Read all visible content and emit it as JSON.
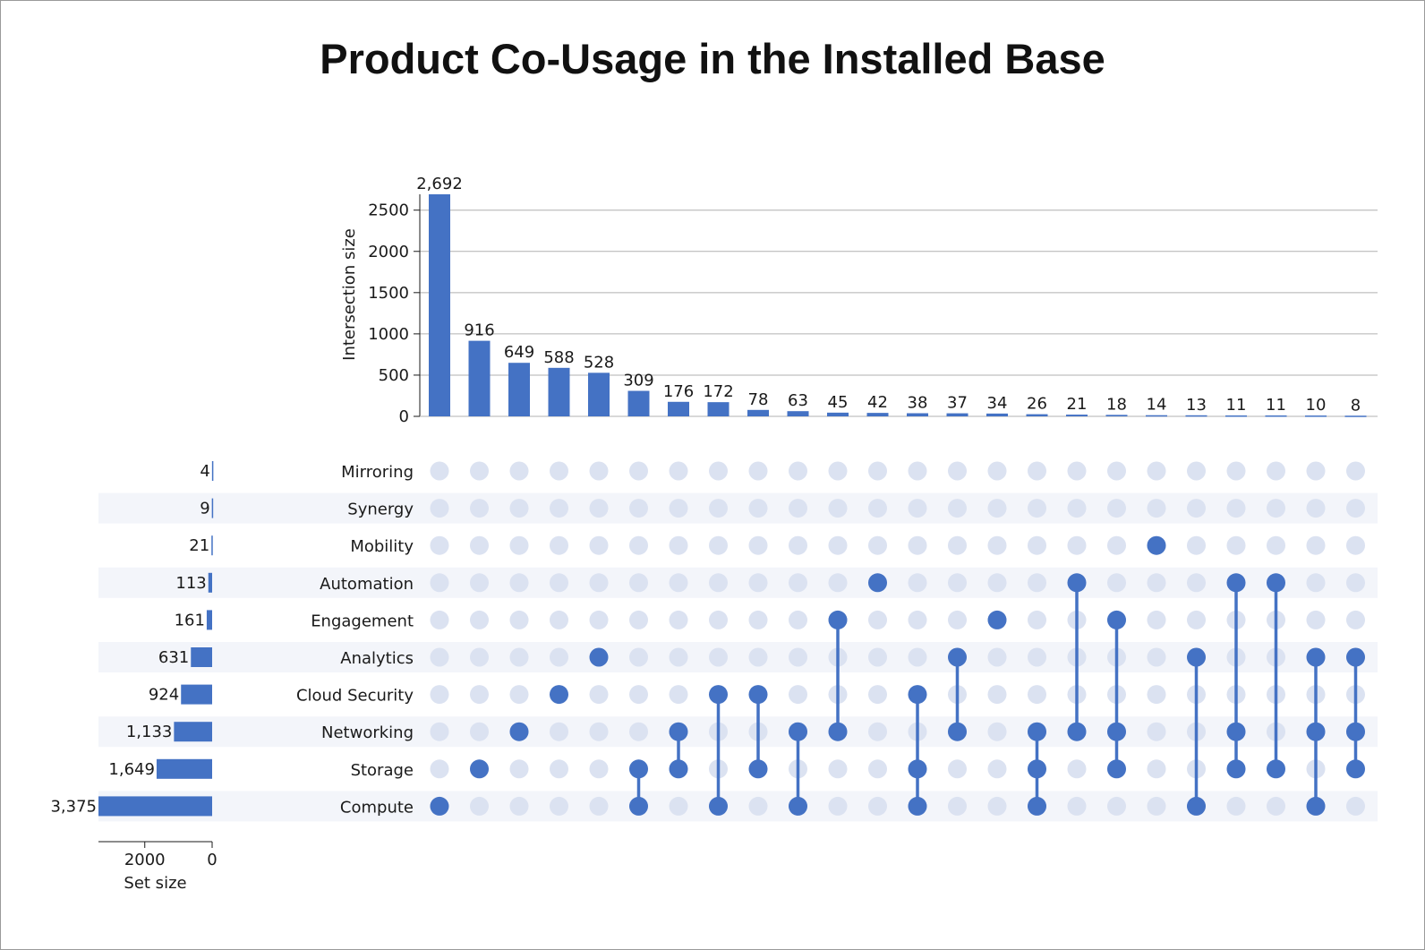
{
  "title": "Product Co-Usage in the Installed Base",
  "colors": {
    "bar": "#4472c4",
    "dot_on": "#4472c4",
    "dot_off": "#dbe2f1",
    "row_shade": "#f3f5fa",
    "grid": "#b0b0b0"
  },
  "chart_data": {
    "type": "upset",
    "title": "Product Co-Usage in the Installed Base",
    "ylabel": "Intersection size",
    "xlabel_sets": "Set size",
    "intersection_ylim": [
      0,
      2692
    ],
    "intersection_yticks": [
      0,
      500,
      1000,
      1500,
      2000,
      2500
    ],
    "set_size_xticks": [
      2000,
      0
    ],
    "sets": [
      {
        "name": "Mirroring",
        "size": 4,
        "label": "4"
      },
      {
        "name": "Synergy",
        "size": 9,
        "label": "9"
      },
      {
        "name": "Mobility",
        "size": 21,
        "label": "21"
      },
      {
        "name": "Automation",
        "size": 113,
        "label": "113"
      },
      {
        "name": "Engagement",
        "size": 161,
        "label": "161"
      },
      {
        "name": "Analytics",
        "size": 631,
        "label": "631"
      },
      {
        "name": "Cloud Security",
        "size": 924,
        "label": "924"
      },
      {
        "name": "Networking",
        "size": 1133,
        "label": "1,133"
      },
      {
        "name": "Storage",
        "size": 1649,
        "label": "1,649"
      },
      {
        "name": "Compute",
        "size": 3375,
        "label": "3,375"
      }
    ],
    "intersections": [
      {
        "value": 2692,
        "label": "2,692",
        "members": [
          "Compute"
        ]
      },
      {
        "value": 916,
        "label": "916",
        "members": [
          "Storage"
        ]
      },
      {
        "value": 649,
        "label": "649",
        "members": [
          "Networking"
        ]
      },
      {
        "value": 588,
        "label": "588",
        "members": [
          "Cloud Security"
        ]
      },
      {
        "value": 528,
        "label": "528",
        "members": [
          "Analytics"
        ]
      },
      {
        "value": 309,
        "label": "309",
        "members": [
          "Storage",
          "Compute"
        ]
      },
      {
        "value": 176,
        "label": "176",
        "members": [
          "Networking",
          "Storage"
        ]
      },
      {
        "value": 172,
        "label": "172",
        "members": [
          "Cloud Security",
          "Compute"
        ]
      },
      {
        "value": 78,
        "label": "78",
        "members": [
          "Cloud Security",
          "Storage"
        ]
      },
      {
        "value": 63,
        "label": "63",
        "members": [
          "Networking",
          "Compute"
        ]
      },
      {
        "value": 45,
        "label": "45",
        "members": [
          "Engagement",
          "Networking"
        ]
      },
      {
        "value": 42,
        "label": "42",
        "members": [
          "Automation"
        ]
      },
      {
        "value": 38,
        "label": "38",
        "members": [
          "Cloud Security",
          "Storage",
          "Compute"
        ]
      },
      {
        "value": 37,
        "label": "37",
        "members": [
          "Analytics",
          "Networking"
        ]
      },
      {
        "value": 34,
        "label": "34",
        "members": [
          "Engagement"
        ]
      },
      {
        "value": 26,
        "label": "26",
        "members": [
          "Networking",
          "Storage",
          "Compute"
        ]
      },
      {
        "value": 21,
        "label": "21",
        "members": [
          "Automation",
          "Networking"
        ]
      },
      {
        "value": 18,
        "label": "18",
        "members": [
          "Engagement",
          "Networking",
          "Storage"
        ]
      },
      {
        "value": 14,
        "label": "14",
        "members": [
          "Mobility"
        ]
      },
      {
        "value": 13,
        "label": "13",
        "members": [
          "Analytics",
          "Compute"
        ]
      },
      {
        "value": 11,
        "label": "11",
        "members": [
          "Automation",
          "Networking",
          "Storage"
        ]
      },
      {
        "value": 11,
        "label": "11",
        "members": [
          "Automation",
          "Storage"
        ]
      },
      {
        "value": 10,
        "label": "10",
        "members": [
          "Analytics",
          "Networking",
          "Compute"
        ]
      },
      {
        "value": 8,
        "label": "8",
        "members": [
          "Analytics",
          "Networking",
          "Storage"
        ]
      }
    ]
  }
}
